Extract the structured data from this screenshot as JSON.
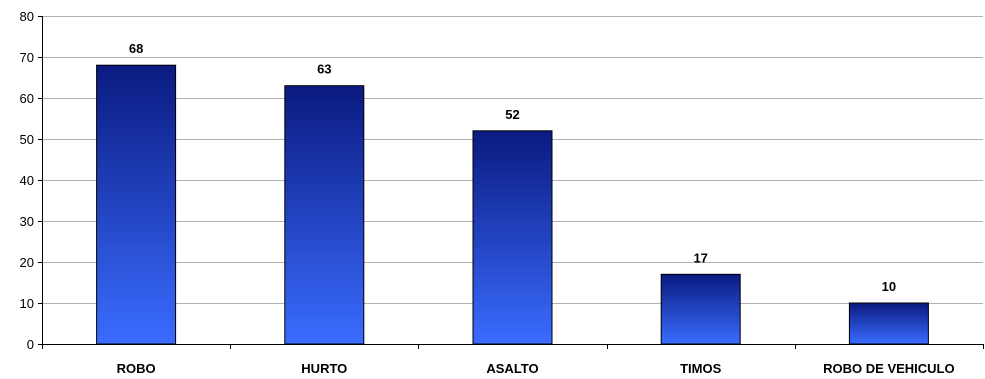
{
  "chart_data": {
    "type": "bar",
    "categories": [
      "ROBO",
      "HURTO",
      "ASALTO",
      "TIMOS",
      "ROBO DE VEHICULO"
    ],
    "values": [
      68,
      63,
      52,
      17,
      10
    ],
    "ylim": [
      0,
      80
    ],
    "yticks": [
      0,
      10,
      20,
      30,
      40,
      50,
      60,
      70,
      80
    ],
    "grid": true,
    "data_labels": true,
    "colors": {
      "bar_top": "#0a1a80",
      "bar_bottom": "#3a6cff",
      "bar_stroke": "#000000",
      "grid": "#b0b0b0",
      "axis": "#000000"
    }
  }
}
